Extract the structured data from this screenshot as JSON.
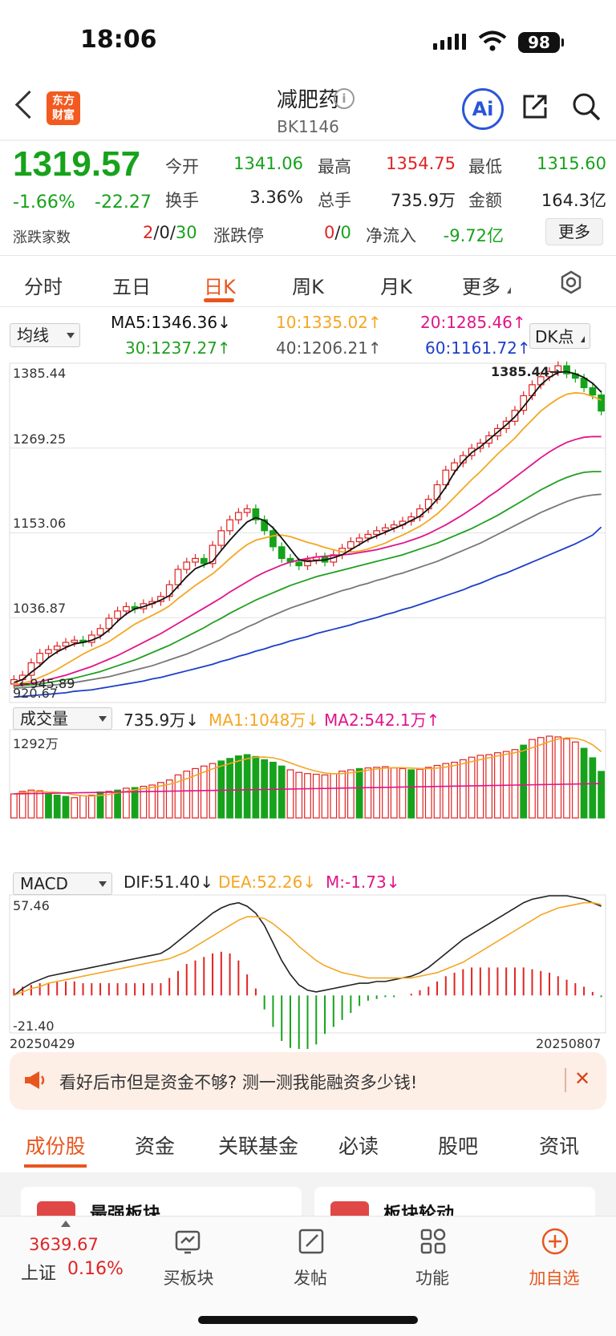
{
  "status_bar": {
    "time": "18:06",
    "battery": "98"
  },
  "header": {
    "title": "减肥药",
    "code": "BK1146",
    "logo_line1": "东方",
    "logo_line2": "财富",
    "ai_label": "Ai"
  },
  "quote": {
    "price": "1319.57",
    "change_pct": "-1.66%",
    "change": "-22.27",
    "open_label": "今开",
    "open": "1341.06",
    "high_label": "最高",
    "high": "1354.75",
    "low_label": "最低",
    "low": "1315.60",
    "turnover_label": "换手",
    "turnover": "3.36%",
    "volume_label": "总手",
    "volume": "735.9万",
    "amount_label": "金额",
    "amount": "164.3亿",
    "breadth_label": "涨跌家数",
    "breadth_up": "2",
    "breadth_sep1": "/",
    "breadth_flat": "0",
    "breadth_sep2": "/",
    "breadth_down": "30",
    "limit_label": "涨跌停",
    "limit_up": "0",
    "limit_sep": "/",
    "limit_down": "0",
    "netflow_label": "净流入",
    "netflow": "-9.72亿",
    "more_label": "更多"
  },
  "period_tabs": [
    "分时",
    "五日",
    "日K",
    "周K",
    "月K",
    "更多"
  ],
  "active_tab": "日K",
  "ma_row": {
    "dropdown": "均线",
    "ma5": "MA5:1346.36↓",
    "ma10": "10:1335.02↑",
    "ma20": "20:1285.46↑",
    "ma30": "30:1237.27↑",
    "ma40": "40:1206.21↑",
    "ma60": "60:1161.72↑",
    "dk": "DK点"
  },
  "colors": {
    "up": "#e02424",
    "down": "#17a21c",
    "ma5": "#111111",
    "ma10": "#f5a623",
    "ma20": "#e0158a",
    "ma30": "#20a020",
    "ma40": "#777777",
    "ma60": "#1d3fc8",
    "accent": "#e8561e"
  },
  "chart_data": {
    "type": "candlestick",
    "y_labels": [
      "1385.44",
      "1269.25",
      "1153.06",
      "1036.87",
      "920.67"
    ],
    "ylim": [
      920.67,
      1385.44
    ],
    "max_marker": "1385.44",
    "min_marker": "945.89",
    "x_start": "20250429",
    "x_end": "20250807",
    "closes": [
      952,
      958,
      975,
      988,
      993,
      998,
      1003,
      1006,
      1003,
      1013,
      1022,
      1036,
      1046,
      1052,
      1049,
      1056,
      1059,
      1066,
      1082,
      1103,
      1113,
      1118,
      1111,
      1136,
      1156,
      1171,
      1181,
      1186,
      1171,
      1156,
      1134,
      1118,
      1113,
      1108,
      1116,
      1120,
      1113,
      1123,
      1132,
      1141,
      1146,
      1151,
      1156,
      1160,
      1164,
      1169,
      1175,
      1186,
      1199,
      1219,
      1239,
      1249,
      1259,
      1269,
      1276,
      1286,
      1296,
      1306,
      1321,
      1341,
      1356,
      1367,
      1374,
      1382,
      1371,
      1365,
      1352,
      1342,
      1320
    ],
    "ma5": [
      948,
      952,
      962,
      971,
      982,
      990,
      996,
      1001,
      1003,
      1006,
      1011,
      1020,
      1032,
      1042,
      1049,
      1052,
      1056,
      1061,
      1067,
      1080,
      1093,
      1104,
      1109,
      1114,
      1129,
      1143,
      1156,
      1168,
      1174,
      1170,
      1160,
      1146,
      1131,
      1116,
      1114,
      1115,
      1116,
      1119,
      1123,
      1130,
      1137,
      1144,
      1149,
      1154,
      1159,
      1164,
      1170,
      1176,
      1186,
      1199,
      1216,
      1236,
      1251,
      1263,
      1271,
      1281,
      1291,
      1301,
      1312,
      1326,
      1341,
      1356,
      1366,
      1373,
      1374,
      1371,
      1366,
      1358,
      1346
    ],
    "ma10": [
      945,
      947,
      950,
      955,
      960,
      966,
      973,
      980,
      987,
      993,
      998,
      1004,
      1012,
      1020,
      1028,
      1034,
      1040,
      1046,
      1053,
      1063,
      1072,
      1081,
      1089,
      1097,
      1107,
      1118,
      1128,
      1137,
      1143,
      1146,
      1149,
      1150,
      1148,
      1144,
      1140,
      1137,
      1133,
      1130,
      1127,
      1127,
      1128,
      1131,
      1135,
      1139,
      1145,
      1150,
      1156,
      1162,
      1170,
      1179,
      1190,
      1202,
      1214,
      1226,
      1237,
      1249,
      1261,
      1272,
      1283,
      1296,
      1308,
      1320,
      1329,
      1337,
      1343,
      1345,
      1344,
      1340,
      1335
    ],
    "ma20": [
      944,
      945,
      947,
      949,
      952,
      955,
      958,
      962,
      966,
      970,
      975,
      980,
      985,
      991,
      997,
      1003,
      1009,
      1015,
      1022,
      1029,
      1036,
      1043,
      1050,
      1057,
      1064,
      1072,
      1079,
      1086,
      1093,
      1099,
      1104,
      1109,
      1113,
      1116,
      1118,
      1120,
      1121,
      1122,
      1123,
      1124,
      1126,
      1128,
      1130,
      1133,
      1136,
      1139,
      1143,
      1147,
      1152,
      1158,
      1164,
      1171,
      1178,
      1186,
      1194,
      1203,
      1211,
      1220,
      1229,
      1238,
      1247,
      1256,
      1264,
      1271,
      1277,
      1281,
      1284,
      1285,
      1285
    ],
    "ma30": [
      943,
      944,
      945,
      946,
      948,
      950,
      952,
      954,
      957,
      960,
      963,
      967,
      971,
      975,
      979,
      984,
      989,
      994,
      999,
      1005,
      1011,
      1017,
      1023,
      1030,
      1036,
      1043,
      1049,
      1055,
      1061,
      1066,
      1071,
      1076,
      1081,
      1085,
      1089,
      1093,
      1096,
      1099,
      1102,
      1105,
      1108,
      1111,
      1114,
      1117,
      1120,
      1123,
      1127,
      1131,
      1135,
      1139,
      1144,
      1149,
      1154,
      1159,
      1165,
      1171,
      1177,
      1184,
      1191,
      1198,
      1205,
      1212,
      1218,
      1224,
      1229,
      1233,
      1236,
      1237,
      1237
    ],
    "ma40": [
      940,
      941,
      942,
      943,
      944,
      945,
      947,
      948,
      950,
      952,
      954,
      956,
      959,
      962,
      965,
      968,
      971,
      975,
      979,
      983,
      987,
      992,
      997,
      1002,
      1007,
      1013,
      1018,
      1024,
      1029,
      1035,
      1040,
      1045,
      1050,
      1054,
      1058,
      1062,
      1066,
      1070,
      1074,
      1077,
      1081,
      1084,
      1088,
      1091,
      1095,
      1098,
      1102,
      1106,
      1110,
      1114,
      1119,
      1124,
      1129,
      1134,
      1139,
      1145,
      1151,
      1157,
      1163,
      1169,
      1175,
      1181,
      1186,
      1191,
      1196,
      1200,
      1203,
      1205,
      1206
    ],
    "ma60": [
      928,
      929,
      930,
      931,
      932,
      933,
      934,
      936,
      937,
      938,
      940,
      942,
      944,
      946,
      948,
      950,
      953,
      955,
      958,
      961,
      964,
      967,
      970,
      973,
      977,
      980,
      984,
      987,
      991,
      994,
      998,
      1001,
      1005,
      1008,
      1011,
      1015,
      1018,
      1021,
      1024,
      1027,
      1031,
      1034,
      1037,
      1041,
      1044,
      1048,
      1051,
      1055,
      1059,
      1063,
      1067,
      1071,
      1075,
      1080,
      1084,
      1089,
      1094,
      1098,
      1103,
      1108,
      1113,
      1118,
      1123,
      1128,
      1133,
      1138,
      1144,
      1150,
      1161
    ],
    "volume_label": "1292万",
    "volumes": [
      380,
      420,
      440,
      430,
      380,
      360,
      340,
      320,
      350,
      360,
      410,
      420,
      440,
      470,
      480,
      500,
      520,
      560,
      600,
      680,
      740,
      780,
      820,
      860,
      900,
      940,
      980,
      1000,
      970,
      920,
      880,
      820,
      760,
      720,
      700,
      690,
      680,
      700,
      740,
      760,
      780,
      790,
      800,
      810,
      790,
      780,
      760,
      770,
      800,
      830,
      860,
      880,
      920,
      960,
      990,
      1000,
      1030,
      1050,
      1080,
      1150,
      1240,
      1270,
      1292,
      1280,
      1250,
      1200,
      1100,
      950,
      735
    ],
    "volume_colors": "rrrrgggrrrgrgrgrrrrrrrrrggggggggrrrrrrrrgrrrrrgrrrrrrrrrrrrgrrrrrrggg",
    "macd_ylim": [
      -21.4,
      57.46
    ],
    "dif": [
      0,
      4,
      7,
      9,
      11,
      12,
      13,
      14,
      15,
      16,
      17,
      18,
      19,
      20,
      21,
      22,
      23,
      24,
      27,
      31,
      35,
      39,
      43,
      47,
      50,
      52,
      53,
      51,
      47,
      40,
      30,
      20,
      12,
      6,
      3,
      2,
      3,
      4,
      5,
      6,
      7,
      7,
      8,
      8,
      9,
      10,
      11,
      13,
      16,
      20,
      24,
      28,
      32,
      35,
      38,
      41,
      44,
      47,
      50,
      53,
      55,
      56,
      57,
      57,
      57,
      56,
      55,
      53,
      51
    ],
    "dea": [
      0,
      2,
      4,
      5,
      7,
      8,
      9,
      10,
      11,
      12,
      13,
      14,
      15,
      16,
      17,
      18,
      19,
      20,
      21,
      23,
      25,
      28,
      31,
      34,
      37,
      40,
      43,
      45,
      45,
      44,
      41,
      37,
      33,
      28,
      24,
      20,
      17,
      15,
      13,
      12,
      11,
      10,
      10,
      10,
      10,
      10,
      10,
      11,
      12,
      13,
      15,
      17,
      19,
      22,
      25,
      28,
      31,
      34,
      37,
      40,
      43,
      46,
      48,
      50,
      51,
      52,
      53,
      53,
      52
    ],
    "hist": [
      4,
      5,
      6,
      7,
      7,
      8,
      8,
      8,
      7,
      7,
      7,
      7,
      7,
      7,
      7,
      7,
      7,
      7,
      10,
      14,
      18,
      20,
      22,
      24,
      25,
      24,
      20,
      12,
      4,
      -8,
      -18,
      -26,
      -30,
      -33,
      -32,
      -28,
      -22,
      -18,
      -14,
      -10,
      -6,
      -3,
      -2,
      -1,
      -1,
      0,
      1,
      3,
      5,
      8,
      11,
      13,
      15,
      16,
      16,
      16,
      16,
      16,
      16,
      16,
      15,
      14,
      13,
      11,
      9,
      7,
      5,
      2,
      -1
    ]
  },
  "volume_row": {
    "dropdown": "成交量",
    "vol": "735.9万↓",
    "ma1": "MA1:1048万↓",
    "ma2": "MA2:542.1万↑"
  },
  "macd_row": {
    "dropdown": "MACD",
    "dif": "DIF:51.40↓",
    "dea": "DEA:52.26↓",
    "m": "M:-1.73↓",
    "top": "57.46",
    "bottom": "-21.40"
  },
  "banner": {
    "text": "看好后市但是资金不够? 测一测我能融资多少钱!"
  },
  "bottom_tabs": [
    "成份股",
    "资金",
    "关联基金",
    "必读",
    "股吧",
    "资讯"
  ],
  "cards": [
    "最强板块",
    "板块轮动"
  ],
  "bottom_nav": {
    "index_value": "3639.67",
    "index_name": "上证",
    "index_change": "0.16%",
    "items": [
      "买板块",
      "发帖",
      "功能",
      "加自选"
    ]
  }
}
